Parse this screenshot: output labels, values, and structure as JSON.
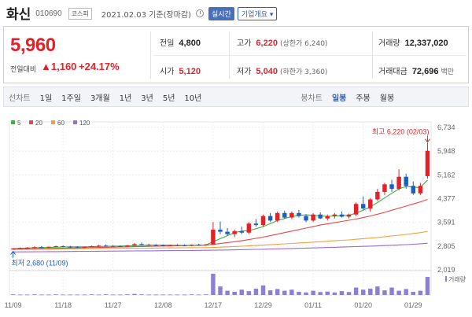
{
  "header": {
    "name": "화신",
    "code": "010690",
    "market": "코스피",
    "date": "2021.02.03 기준(장마감)",
    "live_label": "실시간",
    "info_label": "기업개요 ▾"
  },
  "quote": {
    "price": "5,960",
    "change_label": "전일대비",
    "change": "▲1,160",
    "change_pct": "+24.17%",
    "prev_label": "전일",
    "prev": "4,800",
    "high_label": "고가",
    "high": "6,220",
    "upper_limit": "(상한가 6,240)",
    "volume_label": "거래량",
    "volume": "12,337,020",
    "open_label": "시가",
    "open": "5,120",
    "low_label": "저가",
    "low": "5,040",
    "lower_limit": "(하한가 3,360)",
    "amount_label": "거래대금",
    "amount": "72,696",
    "amount_unit": "백만"
  },
  "tabs": {
    "line_chart_label": "선차트",
    "periods": [
      "1일",
      "1주일",
      "3개월",
      "1년",
      "3년",
      "5년",
      "10년"
    ],
    "candle_label": "봉차트",
    "candle_types": [
      "일봉",
      "주봉",
      "월봉"
    ],
    "active_candle": "일봉"
  },
  "chart_data": {
    "type": "candlestick",
    "colors": {
      "up": "#e0222a",
      "down": "#1a5fc4",
      "ma5": "#3db03d",
      "ma20": "#e84545",
      "ma60": "#f0a040",
      "ma120": "#9b6bd6"
    },
    "legend": [
      {
        "name": "5",
        "color": "#3db03d"
      },
      {
        "name": "20",
        "color": "#e84545"
      },
      {
        "name": "60",
        "color": "#f0a040"
      },
      {
        "name": "120",
        "color": "#9b6bd6"
      }
    ],
    "y_ticks": [
      "6,734",
      "5,948",
      "5,162",
      "4,377",
      "3,591",
      "2,805",
      "2,019"
    ],
    "y_range": [
      2019,
      6734
    ],
    "x_labels": [
      "11/09",
      "11/18",
      "11/27",
      "12/08",
      "12/17",
      "12/29",
      "01/11",
      "01/20",
      "01/29"
    ],
    "x_label_index": [
      0,
      7,
      14,
      21,
      28,
      35,
      42,
      49,
      56
    ],
    "candles": [
      {
        "o": 2700,
        "h": 2740,
        "l": 2680,
        "c": 2720
      },
      {
        "o": 2720,
        "h": 2760,
        "l": 2700,
        "c": 2740
      },
      {
        "o": 2740,
        "h": 2770,
        "l": 2720,
        "c": 2750
      },
      {
        "o": 2750,
        "h": 2790,
        "l": 2730,
        "c": 2770
      },
      {
        "o": 2770,
        "h": 2800,
        "l": 2740,
        "c": 2760
      },
      {
        "o": 2760,
        "h": 2790,
        "l": 2740,
        "c": 2780
      },
      {
        "o": 2780,
        "h": 2820,
        "l": 2760,
        "c": 2800
      },
      {
        "o": 2800,
        "h": 2830,
        "l": 2760,
        "c": 2780
      },
      {
        "o": 2780,
        "h": 2810,
        "l": 2750,
        "c": 2770
      },
      {
        "o": 2770,
        "h": 2800,
        "l": 2740,
        "c": 2760
      },
      {
        "o": 2760,
        "h": 2790,
        "l": 2740,
        "c": 2780
      },
      {
        "o": 2780,
        "h": 2820,
        "l": 2760,
        "c": 2800
      },
      {
        "o": 2800,
        "h": 2840,
        "l": 2780,
        "c": 2820
      },
      {
        "o": 2820,
        "h": 2860,
        "l": 2790,
        "c": 2810
      },
      {
        "o": 2810,
        "h": 2840,
        "l": 2780,
        "c": 2800
      },
      {
        "o": 2800,
        "h": 2830,
        "l": 2770,
        "c": 2790
      },
      {
        "o": 2790,
        "h": 2840,
        "l": 2770,
        "c": 2830
      },
      {
        "o": 2830,
        "h": 2900,
        "l": 2810,
        "c": 2870
      },
      {
        "o": 2870,
        "h": 2920,
        "l": 2840,
        "c": 2850
      },
      {
        "o": 2850,
        "h": 2880,
        "l": 2820,
        "c": 2840
      },
      {
        "o": 2840,
        "h": 2870,
        "l": 2810,
        "c": 2830
      },
      {
        "o": 2830,
        "h": 2860,
        "l": 2800,
        "c": 2820
      },
      {
        "o": 2820,
        "h": 2850,
        "l": 2800,
        "c": 2840
      },
      {
        "o": 2840,
        "h": 2870,
        "l": 2810,
        "c": 2830
      },
      {
        "o": 2830,
        "h": 2860,
        "l": 2800,
        "c": 2820
      },
      {
        "o": 2820,
        "h": 2860,
        "l": 2800,
        "c": 2850
      },
      {
        "o": 2850,
        "h": 2880,
        "l": 2820,
        "c": 2840
      },
      {
        "o": 2840,
        "h": 2870,
        "l": 2820,
        "c": 2860
      },
      {
        "o": 2860,
        "h": 3600,
        "l": 2850,
        "c": 3350
      },
      {
        "o": 3350,
        "h": 3620,
        "l": 3200,
        "c": 3280
      },
      {
        "o": 3280,
        "h": 3400,
        "l": 3150,
        "c": 3200
      },
      {
        "o": 3200,
        "h": 3350,
        "l": 3100,
        "c": 3300
      },
      {
        "o": 3300,
        "h": 3450,
        "l": 3200,
        "c": 3250
      },
      {
        "o": 3250,
        "h": 3600,
        "l": 3200,
        "c": 3550
      },
      {
        "o": 3550,
        "h": 3700,
        "l": 3450,
        "c": 3500
      },
      {
        "o": 3500,
        "h": 3850,
        "l": 3450,
        "c": 3800
      },
      {
        "o": 3800,
        "h": 3900,
        "l": 3600,
        "c": 3650
      },
      {
        "o": 3650,
        "h": 3950,
        "l": 3600,
        "c": 3900
      },
      {
        "o": 3900,
        "h": 3980,
        "l": 3700,
        "c": 3750
      },
      {
        "o": 3750,
        "h": 3950,
        "l": 3700,
        "c": 3900
      },
      {
        "o": 3900,
        "h": 4000,
        "l": 3750,
        "c": 3800
      },
      {
        "o": 3800,
        "h": 3860,
        "l": 3600,
        "c": 3650
      },
      {
        "o": 3650,
        "h": 3900,
        "l": 3600,
        "c": 3850
      },
      {
        "o": 3850,
        "h": 3920,
        "l": 3700,
        "c": 3720
      },
      {
        "o": 3720,
        "h": 3850,
        "l": 3650,
        "c": 3800
      },
      {
        "o": 3800,
        "h": 3900,
        "l": 3720,
        "c": 3850
      },
      {
        "o": 3850,
        "h": 3950,
        "l": 3750,
        "c": 3780
      },
      {
        "o": 3780,
        "h": 3880,
        "l": 3720,
        "c": 3850
      },
      {
        "o": 3850,
        "h": 4250,
        "l": 3800,
        "c": 4200
      },
      {
        "o": 4200,
        "h": 4450,
        "l": 4000,
        "c": 4050
      },
      {
        "o": 4050,
        "h": 4400,
        "l": 3950,
        "c": 4350
      },
      {
        "o": 4350,
        "h": 4700,
        "l": 4300,
        "c": 4600
      },
      {
        "o": 4600,
        "h": 4900,
        "l": 4500,
        "c": 4850
      },
      {
        "o": 4850,
        "h": 5000,
        "l": 4600,
        "c": 4700
      },
      {
        "o": 4700,
        "h": 5350,
        "l": 4650,
        "c": 5100
      },
      {
        "o": 5100,
        "h": 5200,
        "l": 4700,
        "c": 4800
      },
      {
        "o": 4800,
        "h": 4950,
        "l": 4500,
        "c": 4550
      },
      {
        "o": 4550,
        "h": 4900,
        "l": 4500,
        "c": 4800
      },
      {
        "o": 5120,
        "h": 6220,
        "l": 5040,
        "c": 5960
      }
    ],
    "ma5": [
      2720,
      2730,
      2740,
      2750,
      2755,
      2760,
      2770,
      2775,
      2780,
      2780,
      2780,
      2785,
      2790,
      2795,
      2800,
      2805,
      2810,
      2820,
      2830,
      2835,
      2840,
      2840,
      2835,
      2830,
      2830,
      2830,
      2835,
      2840,
      2950,
      3050,
      3150,
      3250,
      3300,
      3320,
      3380,
      3450,
      3550,
      3650,
      3720,
      3780,
      3820,
      3840,
      3820,
      3800,
      3790,
      3800,
      3810,
      3820,
      3900,
      3990,
      4100,
      4250,
      4400,
      4550,
      4700,
      4780,
      4760,
      4740,
      5000
    ],
    "ma20": [
      2700,
      2705,
      2710,
      2715,
      2720,
      2725,
      2730,
      2735,
      2740,
      2745,
      2750,
      2755,
      2760,
      2765,
      2770,
      2775,
      2780,
      2785,
      2790,
      2795,
      2800,
      2805,
      2810,
      2815,
      2820,
      2825,
      2830,
      2835,
      2860,
      2890,
      2920,
      2950,
      2980,
      3020,
      3060,
      3100,
      3150,
      3200,
      3250,
      3300,
      3350,
      3400,
      3450,
      3500,
      3540,
      3580,
      3620,
      3660,
      3700,
      3750,
      3800,
      3860,
      3920,
      3990,
      4060,
      4130,
      4200,
      4270,
      4350
    ],
    "ma60": [
      2700,
      2702,
      2704,
      2706,
      2708,
      2710,
      2712,
      2714,
      2716,
      2718,
      2720,
      2722,
      2724,
      2726,
      2728,
      2730,
      2732,
      2734,
      2736,
      2738,
      2740,
      2742,
      2744,
      2746,
      2748,
      2750,
      2752,
      2754,
      2760,
      2770,
      2780,
      2790,
      2800,
      2812,
      2824,
      2836,
      2850,
      2864,
      2878,
      2892,
      2906,
      2920,
      2935,
      2950,
      2965,
      2980,
      2995,
      3010,
      3030,
      3050,
      3070,
      3090,
      3115,
      3140,
      3165,
      3190,
      3220,
      3250,
      3290
    ],
    "ma120": [
      2610,
      2612,
      2614,
      2616,
      2618,
      2620,
      2622,
      2624,
      2626,
      2628,
      2630,
      2632,
      2634,
      2636,
      2638,
      2640,
      2642,
      2644,
      2646,
      2648,
      2650,
      2652,
      2654,
      2656,
      2658,
      2660,
      2662,
      2664,
      2668,
      2672,
      2676,
      2680,
      2685,
      2690,
      2695,
      2700,
      2706,
      2712,
      2718,
      2724,
      2730,
      2737,
      2744,
      2751,
      2758,
      2765,
      2772,
      2780,
      2788,
      2796,
      2804,
      2812,
      2822,
      2832,
      2842,
      2852,
      2865,
      2880,
      2900
    ],
    "volume": [
      3,
      2,
      2,
      3,
      2,
      2,
      3,
      2,
      2,
      2,
      2,
      3,
      2,
      3,
      2,
      2,
      3,
      5,
      3,
      2,
      2,
      2,
      2,
      2,
      2,
      3,
      2,
      3,
      100,
      40,
      20,
      15,
      25,
      18,
      30,
      45,
      22,
      28,
      20,
      25,
      15,
      12,
      20,
      14,
      16,
      12,
      18,
      14,
      35,
      25,
      30,
      40,
      22,
      35,
      20,
      28,
      15,
      20,
      85
    ],
    "high_marker": {
      "label": "최고 6,220 (02/03)",
      "value": 6220
    },
    "low_marker": {
      "label": "최저 2,680 (11/09)",
      "value": 2680
    },
    "volume_label": "거래량"
  }
}
